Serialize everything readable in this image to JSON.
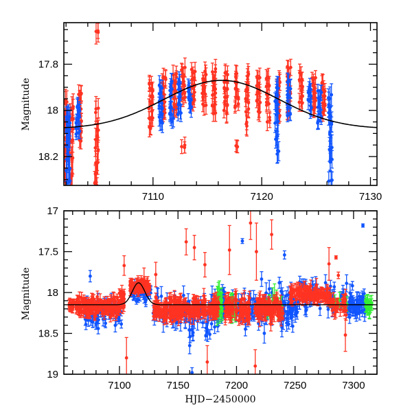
{
  "chart_data": [
    {
      "type": "scatter",
      "panel": "top",
      "title": "",
      "xlabel": "",
      "ylabel": "Magnitude",
      "xlim": [
        7101.8,
        7130.6
      ],
      "ylim": [
        18.325,
        17.62
      ],
      "y_inverted": true,
      "xticks_major": [
        7110,
        7120,
        7130
      ],
      "xtick_labels": [
        "7110",
        "7120",
        "7130"
      ],
      "xticks_minor_step": 2,
      "yticks_major": [
        17.8,
        18,
        18.2
      ],
      "ytick_labels": [
        "17.8",
        "18",
        "18.2"
      ],
      "yticks_minor_step": 0.05,
      "grid": false,
      "model_curve": {
        "name": "model",
        "color": "#000000",
        "baseline_mag": 18.08,
        "peak_mag": 17.87,
        "peak_x": 7116.3,
        "width_days": 7.5
      },
      "series": [
        {
          "name": "red",
          "color": "#ff3322",
          "clusters": [
            {
              "x": 7101.9,
              "mags": [
                17.96,
                18.01,
                18.05,
                18.09,
                18.12,
                18.18,
                18.22,
                18.26,
                18.3
              ],
              "err": 0.04
            },
            {
              "x": 7102.5,
              "mags": [
                17.99,
                18.03,
                18.08,
                18.13,
                18.2,
                18.28,
                18.33
              ],
              "err": 0.05
            },
            {
              "x": 7103.3,
              "mags": [
                17.93,
                17.96,
                17.99,
                18.02,
                18.05,
                18.1,
                18.13
              ],
              "err": 0.03
            },
            {
              "x": 7104.8,
              "mags": [
                17.66,
                18.0,
                18.08,
                18.12,
                18.17,
                18.22,
                18.28,
                18.32
              ],
              "err": 0.04
            },
            {
              "x": 7109.8,
              "mags": [
                17.88,
                17.91,
                17.94,
                17.97,
                18.0,
                18.03,
                18.08
              ],
              "err": 0.03
            },
            {
              "x": 7111.0,
              "mags": [
                17.86,
                17.89,
                17.93,
                17.96,
                17.99,
                18.02
              ],
              "err": 0.03
            },
            {
              "x": 7112.0,
              "mags": [
                17.85,
                17.88,
                17.91,
                17.95,
                17.98,
                18.0
              ],
              "err": 0.03
            },
            {
              "x": 7112.8,
              "mags": [
                17.82,
                17.85,
                17.88,
                17.92,
                17.95,
                18.16
              ],
              "err": 0.03
            },
            {
              "x": 7113.7,
              "mags": [
                17.83,
                17.86,
                17.9,
                17.93,
                17.96
              ],
              "err": 0.03
            },
            {
              "x": 7114.7,
              "mags": [
                17.84,
                17.87,
                17.9,
                17.93,
                17.97
              ],
              "err": 0.03
            },
            {
              "x": 7115.6,
              "mags": [
                17.83,
                17.87,
                17.9,
                17.93,
                17.98,
                18.02
              ],
              "err": 0.03
            },
            {
              "x": 7116.7,
              "mags": [
                17.84,
                17.87,
                17.91,
                17.94,
                17.97,
                18.01
              ],
              "err": 0.03
            },
            {
              "x": 7117.7,
              "mags": [
                17.85,
                17.88,
                17.91,
                17.95,
                17.98,
                18.15
              ],
              "err": 0.03
            },
            {
              "x": 7118.7,
              "mags": [
                17.85,
                17.88,
                17.92,
                17.96,
                18.0,
                18.06
              ],
              "err": 0.04
            },
            {
              "x": 7119.7,
              "mags": [
                17.86,
                17.89,
                17.92,
                17.96,
                18.0
              ],
              "err": 0.03
            },
            {
              "x": 7120.6,
              "mags": [
                17.86,
                17.89,
                17.93,
                17.97,
                18.04
              ],
              "err": 0.03
            },
            {
              "x": 7121.5,
              "mags": [
                17.87,
                17.9,
                17.93,
                17.97,
                18.02
              ],
              "err": 0.03
            },
            {
              "x": 7122.5,
              "mags": [
                17.82,
                17.85,
                17.88,
                17.92,
                17.96,
                18.0
              ],
              "err": 0.03
            },
            {
              "x": 7123.6,
              "mags": [
                17.84,
                17.87,
                17.9,
                17.94,
                17.97
              ],
              "err": 0.03
            },
            {
              "x": 7124.8,
              "mags": [
                17.86,
                17.89,
                17.92,
                17.95,
                17.99
              ],
              "err": 0.03
            },
            {
              "x": 7125.7,
              "mags": [
                17.88,
                17.91,
                17.94,
                17.97,
                18.0
              ],
              "err": 0.03
            }
          ]
        },
        {
          "name": "blue",
          "color": "#1155ff",
          "clusters": [
            {
              "x": 7102.2,
              "mags": [
                18.03,
                18.05,
                18.09,
                18.12,
                18.16,
                18.21,
                18.26,
                18.31
              ],
              "err": 0.05
            },
            {
              "x": 7103.1,
              "mags": [
                17.98,
                18.0,
                18.03,
                18.05,
                18.07,
                18.1
              ],
              "err": 0.03
            },
            {
              "x": 7110.7,
              "mags": [
                17.9,
                17.93,
                17.96,
                17.99,
                18.02,
                18.05
              ],
              "err": 0.03
            },
            {
              "x": 7111.7,
              "mags": [
                17.88,
                17.91,
                17.94,
                17.98,
                18.01,
                18.04
              ],
              "err": 0.03
            },
            {
              "x": 7112.4,
              "mags": [
                17.88,
                17.91,
                17.94,
                17.97,
                18.01
              ],
              "err": 0.03
            },
            {
              "x": 7113.4,
              "mags": [
                17.9,
                17.92,
                17.95,
                17.98
              ],
              "err": 0.03
            },
            {
              "x": 7121.4,
              "mags": [
                17.9,
                17.93,
                17.97,
                18.01,
                18.05,
                18.12,
                18.18
              ],
              "err": 0.04
            },
            {
              "x": 7122.5,
              "mags": [
                17.88,
                17.91,
                17.94,
                17.98,
                18.02
              ],
              "err": 0.03
            },
            {
              "x": 7124.4,
              "mags": [
                17.9,
                17.93,
                17.96,
                17.99
              ],
              "err": 0.03
            },
            {
              "x": 7125.3,
              "mags": [
                17.92,
                17.95,
                17.98,
                18.02,
                18.05
              ],
              "err": 0.03
            },
            {
              "x": 7126.3,
              "mags": [
                17.94,
                17.98,
                18.02,
                18.06,
                18.1,
                18.16,
                18.22,
                18.3
              ],
              "err": 0.04
            }
          ]
        }
      ]
    },
    {
      "type": "scatter",
      "panel": "bottom",
      "title": "",
      "xlabel": "HJD−2450000",
      "ylabel": "Magnitude",
      "xlim": [
        7052.5,
        7320
      ],
      "ylim": [
        19,
        17
      ],
      "y_inverted": true,
      "xticks_major": [
        7100,
        7150,
        7200,
        7250,
        7300
      ],
      "xtick_labels": [
        "7100",
        "7150",
        "7200",
        "7250",
        "7300"
      ],
      "xticks_minor_step": 10,
      "yticks_major": [
        17,
        17.5,
        18,
        18.5,
        19
      ],
      "ytick_labels": [
        "17",
        "17.5",
        "18",
        "18.5",
        "19"
      ],
      "yticks_minor_step": 0.1,
      "grid": false,
      "model_curve": {
        "name": "model",
        "color": "#000000",
        "baseline_mag": 18.15,
        "peak_mag": 17.88,
        "peak_x": 7116.3,
        "width_days": 7.5
      },
      "series": [
        {
          "name": "blue",
          "color": "#1155ff",
          "segments": [
            {
              "x0": 7070,
              "x1": 7102,
              "center": 18.27,
              "spread": 0.12,
              "n": 60,
              "err": 0.06
            },
            {
              "x0": 7110,
              "x1": 7127,
              "center": 18.0,
              "spread": 0.1,
              "n": 40,
              "err": 0.05
            },
            {
              "x0": 7128,
              "x1": 7185,
              "center": 18.25,
              "spread": 0.18,
              "n": 90,
              "err": 0.08
            },
            {
              "x0": 7185,
              "x1": 7190,
              "center": 18.15,
              "spread": 0.15,
              "n": 30,
              "err": 0.06
            },
            {
              "x0": 7195,
              "x1": 7240,
              "center": 18.2,
              "spread": 0.18,
              "n": 70,
              "err": 0.08
            },
            {
              "x0": 7240,
              "x1": 7252,
              "center": 18.2,
              "spread": 0.15,
              "n": 40,
              "err": 0.07
            },
            {
              "x0": 7252,
              "x1": 7295,
              "center": 18.05,
              "spread": 0.15,
              "n": 60,
              "err": 0.07
            },
            {
              "x0": 7295,
              "x1": 7310,
              "center": 18.15,
              "spread": 0.12,
              "n": 50,
              "err": 0.07
            }
          ],
          "outliers": [
            [
              7075,
              17.8,
              0.07
            ],
            [
              7205,
              17.37,
              0.03
            ],
            [
              7241,
              17.54,
              0.05
            ],
            [
              7308,
              17.18,
              0.02
            ],
            [
              7162,
              18.98,
              0.06
            ],
            [
              7160,
              18.65,
              0.1
            ]
          ]
        },
        {
          "name": "green",
          "color": "#33ee33",
          "segments": [
            {
              "x0": 7183,
              "x1": 7188,
              "center": 18.12,
              "spread": 0.12,
              "n": 20,
              "err": 0.12
            },
            {
              "x0": 7193,
              "x1": 7200,
              "center": 18.15,
              "spread": 0.1,
              "n": 16,
              "err": 0.1
            },
            {
              "x0": 7225,
              "x1": 7240,
              "center": 18.15,
              "spread": 0.1,
              "n": 14,
              "err": 0.1
            },
            {
              "x0": 7280,
              "x1": 7295,
              "center": 18.12,
              "spread": 0.05,
              "n": 10,
              "err": 0.06
            },
            {
              "x0": 7310,
              "x1": 7316,
              "center": 18.15,
              "spread": 0.05,
              "n": 20,
              "err": 0.07
            }
          ],
          "outliers": []
        },
        {
          "name": "red",
          "color": "#ff3322",
          "segments": [
            {
              "x0": 7057,
              "x1": 7062,
              "center": 18.15,
              "spread": 0.05,
              "n": 20,
              "err": 0.04
            },
            {
              "x0": 7063,
              "x1": 7100,
              "center": 18.17,
              "spread": 0.09,
              "n": 160,
              "err": 0.05
            },
            {
              "x0": 7100,
              "x1": 7104,
              "center": 18.08,
              "spread": 0.1,
              "n": 30,
              "err": 0.05
            },
            {
              "x0": 7109,
              "x1": 7126,
              "center": 17.93,
              "spread": 0.06,
              "n": 90,
              "err": 0.04
            },
            {
              "x0": 7129,
              "x1": 7185,
              "center": 18.2,
              "spread": 0.1,
              "n": 220,
              "err": 0.06
            },
            {
              "x0": 7190,
              "x1": 7212,
              "center": 18.2,
              "spread": 0.1,
              "n": 80,
              "err": 0.07
            },
            {
              "x0": 7215,
              "x1": 7240,
              "center": 18.2,
              "spread": 0.1,
              "n": 90,
              "err": 0.07
            },
            {
              "x0": 7245,
              "x1": 7280,
              "center": 18.02,
              "spread": 0.07,
              "n": 110,
              "err": 0.06
            },
            {
              "x0": 7280,
              "x1": 7294,
              "center": 18.15,
              "spread": 0.08,
              "n": 30,
              "err": 0.06
            }
          ],
          "outliers": [
            [
              7104,
              17.67,
              0.12
            ],
            [
              7121,
              17.85,
              0.15
            ],
            [
              7131,
              17.78,
              0.15
            ],
            [
              7157,
              17.38,
              0.16
            ],
            [
              7164,
              17.45,
              0.15
            ],
            [
              7173,
              17.66,
              0.15
            ],
            [
              7194,
              17.48,
              0.3
            ],
            [
              7212,
              17.15,
              0.2
            ],
            [
              7217,
              17.5,
              0.35
            ],
            [
              7230,
              17.29,
              0.18
            ],
            [
              7216,
              18.9,
              0.2
            ],
            [
              7279,
              17.65,
              0.2
            ],
            [
              7285,
              17.57,
              0.02
            ],
            [
              7287,
              17.79,
              0.04
            ],
            [
              7293,
              18.52,
              0.2
            ],
            [
              7106,
              18.8,
              0.25
            ],
            [
              7175,
              18.85,
              0.2
            ]
          ]
        }
      ]
    }
  ]
}
